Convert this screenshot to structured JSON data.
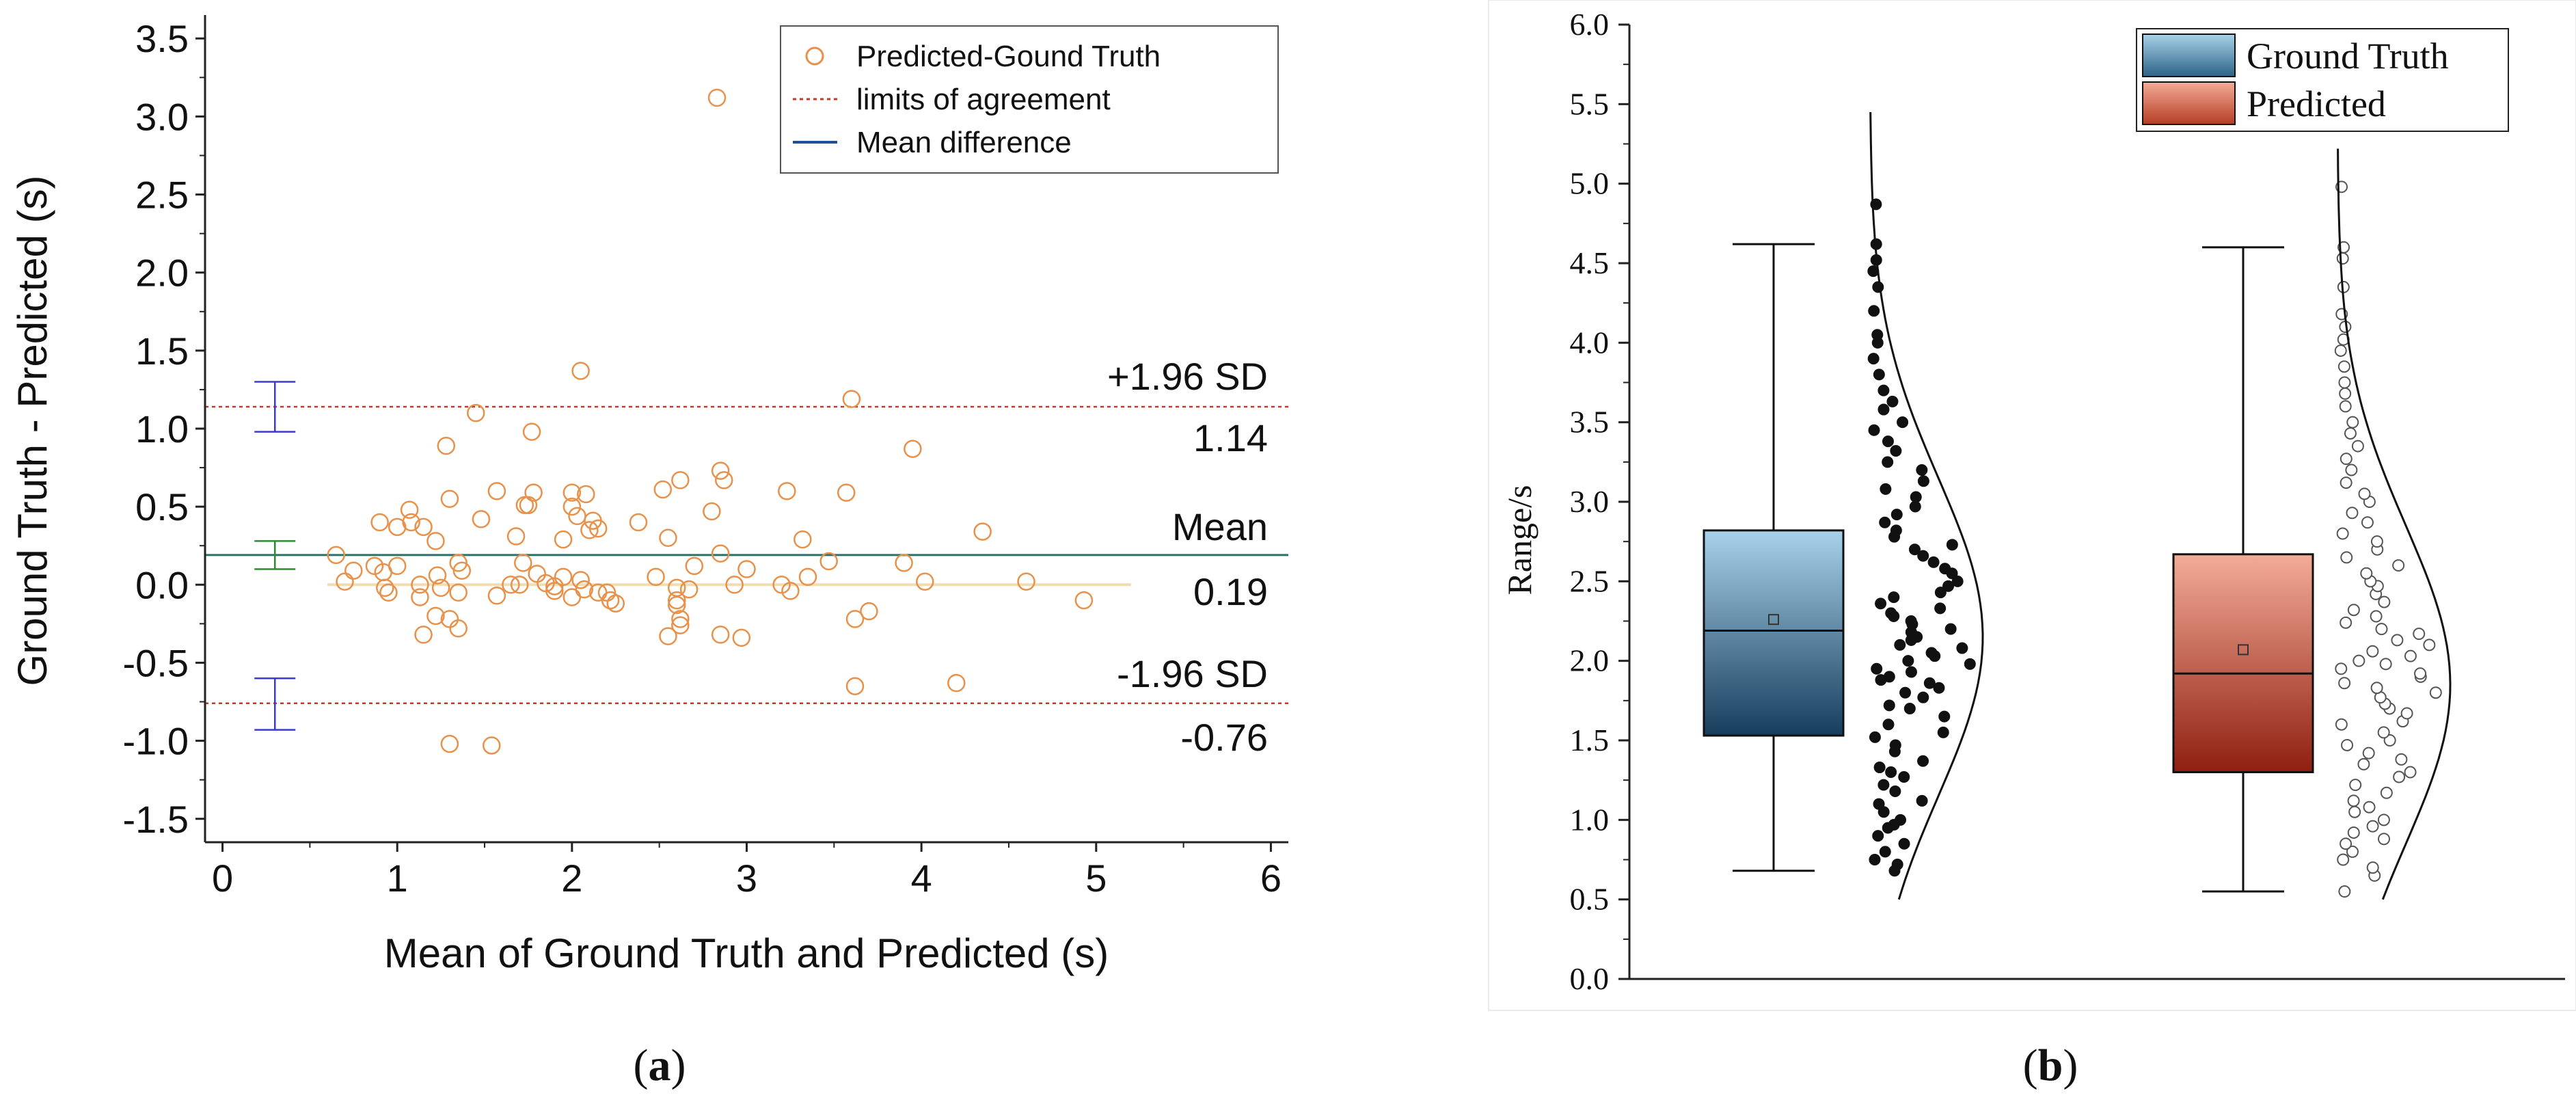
{
  "chart_data": [
    {
      "type": "scatter",
      "panel_label": "(a)",
      "panel_letter": "a",
      "xlabel": "Mean of Ground Truth and Predicted (s)",
      "ylabel": "Ground Truth - Predicted (s)",
      "xlim": [
        -0.1,
        6.1
      ],
      "ylim": [
        -1.65,
        3.65
      ],
      "xticks": [
        "0",
        "1",
        "2",
        "3",
        "4",
        "5",
        "6"
      ],
      "yticks": [
        "-1.5",
        "-1.0",
        "-0.5",
        "0.0",
        "0.5",
        "1.0",
        "1.5",
        "2.0",
        "2.5",
        "3.0",
        "3.5"
      ],
      "legend": [
        {
          "label": "Predicted-Gound Truth",
          "style": "circle"
        },
        {
          "label": "limits of agreement",
          "style": "dotted-red"
        },
        {
          "label": "Mean difference",
          "style": "solid-blue"
        }
      ],
      "mean_difference": 0.19,
      "upper_limit": 1.14,
      "lower_limit": -0.76,
      "annotations": {
        "upper_label": "+1.96 SD",
        "upper_value": "1.14",
        "mean_label": "Mean",
        "mean_value": "0.19",
        "lower_label": "-1.96 SD",
        "lower_value": "-0.76"
      },
      "confidence_bars": [
        {
          "x": 0.3,
          "low": 0.98,
          "high": 1.3,
          "color": "#3b3bd4"
        },
        {
          "x": 0.3,
          "low": 0.1,
          "high": 0.28,
          "color": "#2e8b2e"
        },
        {
          "x": 0.3,
          "low": -0.93,
          "high": -0.6,
          "color": "#3b3bd4"
        }
      ],
      "zero_line": {
        "y": 0.0,
        "x_range": [
          0.6,
          5.2
        ]
      },
      "points": [
        [
          2.83,
          3.12
        ],
        [
          2.05,
          1.37
        ],
        [
          1.45,
          1.1
        ],
        [
          3.6,
          1.19
        ],
        [
          1.77,
          0.98
        ],
        [
          1.28,
          0.89
        ],
        [
          3.95,
          0.87
        ],
        [
          2.85,
          0.73
        ],
        [
          2.87,
          0.67
        ],
        [
          1.3,
          0.55
        ],
        [
          1.73,
          0.51
        ],
        [
          1.78,
          0.59
        ],
        [
          1.75,
          0.51
        ],
        [
          2.0,
          0.59
        ],
        [
          2.08,
          0.58
        ],
        [
          2.0,
          0.5
        ],
        [
          2.03,
          0.44
        ],
        [
          2.52,
          0.61
        ],
        [
          2.62,
          0.67
        ],
        [
          3.23,
          0.6
        ],
        [
          3.57,
          0.59
        ],
        [
          1.07,
          0.48
        ],
        [
          1.08,
          0.4
        ],
        [
          1.0,
          0.37
        ],
        [
          0.9,
          0.4
        ],
        [
          1.15,
          0.37
        ],
        [
          1.48,
          0.42
        ],
        [
          1.57,
          0.6
        ],
        [
          1.68,
          0.31
        ],
        [
          2.12,
          0.41
        ],
        [
          2.15,
          0.36
        ],
        [
          2.1,
          0.35
        ],
        [
          1.95,
          0.29
        ],
        [
          2.38,
          0.4
        ],
        [
          2.8,
          0.47
        ],
        [
          3.32,
          0.29
        ],
        [
          4.35,
          0.34
        ],
        [
          0.65,
          0.19
        ],
        [
          0.7,
          0.02
        ],
        [
          0.75,
          0.09
        ],
        [
          0.87,
          0.12
        ],
        [
          0.92,
          0.08
        ],
        [
          1.0,
          0.12
        ],
        [
          1.22,
          0.28
        ],
        [
          1.35,
          0.14
        ],
        [
          1.37,
          0.09
        ],
        [
          1.23,
          0.06
        ],
        [
          1.13,
          0.0
        ],
        [
          1.25,
          -0.02
        ],
        [
          1.72,
          0.14
        ],
        [
          1.8,
          0.07
        ],
        [
          1.7,
          0.0
        ],
        [
          1.85,
          0.01
        ],
        [
          1.9,
          -0.01
        ],
        [
          1.95,
          0.05
        ],
        [
          2.05,
          0.03
        ],
        [
          2.07,
          -0.03
        ],
        [
          2.0,
          -0.08
        ],
        [
          2.2,
          -0.05
        ],
        [
          2.22,
          -0.1
        ],
        [
          2.48,
          0.05
        ],
        [
          2.55,
          0.3
        ],
        [
          2.6,
          -0.02
        ],
        [
          2.67,
          -0.03
        ],
        [
          2.7,
          0.12
        ],
        [
          2.85,
          0.2
        ],
        [
          3.0,
          0.1
        ],
        [
          3.2,
          0.0
        ],
        [
          3.35,
          0.05
        ],
        [
          3.47,
          0.15
        ],
        [
          3.9,
          0.14
        ],
        [
          4.02,
          0.02
        ],
        [
          4.6,
          0.02
        ],
        [
          4.93,
          -0.1
        ],
        [
          3.62,
          -0.22
        ],
        [
          3.7,
          -0.17
        ],
        [
          2.62,
          -0.22
        ],
        [
          2.55,
          -0.33
        ],
        [
          2.62,
          -0.26
        ],
        [
          2.6,
          -0.13
        ],
        [
          2.85,
          -0.32
        ],
        [
          2.97,
          -0.34
        ],
        [
          2.6,
          -0.1
        ],
        [
          2.25,
          -0.12
        ],
        [
          1.57,
          -0.07
        ],
        [
          1.22,
          -0.2
        ],
        [
          1.3,
          -0.22
        ],
        [
          1.35,
          -0.28
        ],
        [
          1.15,
          -0.32
        ],
        [
          1.13,
          -0.08
        ],
        [
          0.93,
          -0.02
        ],
        [
          0.95,
          -0.05
        ],
        [
          1.35,
          -0.05
        ],
        [
          1.65,
          0.0
        ],
        [
          1.9,
          -0.04
        ],
        [
          2.15,
          -0.05
        ],
        [
          3.62,
          -0.65
        ],
        [
          4.2,
          -0.63
        ],
        [
          1.3,
          -1.02
        ],
        [
          1.54,
          -1.03
        ],
        [
          3.25,
          -0.04
        ],
        [
          2.93,
          0.0
        ]
      ]
    },
    {
      "type": "box",
      "panel_label": "(b)",
      "panel_letter": "b",
      "ylabel": "Range/s",
      "ylim": [
        0.0,
        6.0
      ],
      "yticks": [
        "0.0",
        "0.5",
        "1.0",
        "1.5",
        "2.0",
        "2.5",
        "3.0",
        "3.5",
        "4.0",
        "4.5",
        "5.0",
        "5.5",
        "6.0"
      ],
      "legend": [
        {
          "label": "Ground Truth",
          "color": "#5a8fb3"
        },
        {
          "label": "Predicted",
          "color": "#e07a62"
        }
      ],
      "series": [
        {
          "name": "Ground Truth",
          "whisker_low": 0.68,
          "q1": 1.53,
          "median": 2.19,
          "q3": 2.82,
          "whisker_high": 4.62,
          "mean": 2.26,
          "color_top": "#a8d2ea",
          "color_bottom": "#163d5c",
          "points_style": "filled",
          "density_range": [
            0.5,
            5.45
          ],
          "density_peak": 2.15,
          "points": [
            0.68,
            0.72,
            0.75,
            0.8,
            0.85,
            0.9,
            0.95,
            0.97,
            1.0,
            1.05,
            1.1,
            1.12,
            1.18,
            1.22,
            1.27,
            1.3,
            1.33,
            1.37,
            1.43,
            1.47,
            1.52,
            1.55,
            1.6,
            1.65,
            1.7,
            1.72,
            1.77,
            1.8,
            1.83,
            1.86,
            1.88,
            1.9,
            1.93,
            1.95,
            1.98,
            2.0,
            2.03,
            2.05,
            2.08,
            2.1,
            2.13,
            2.15,
            2.18,
            2.2,
            2.23,
            2.25,
            2.28,
            2.3,
            2.33,
            2.36,
            2.4,
            2.43,
            2.47,
            2.5,
            2.55,
            2.58,
            2.62,
            2.66,
            2.7,
            2.73,
            2.78,
            2.82,
            2.87,
            2.92,
            2.97,
            3.03,
            3.08,
            3.13,
            3.2,
            3.25,
            3.32,
            3.38,
            3.45,
            3.5,
            3.58,
            3.63,
            3.7,
            3.8,
            3.9,
            4.0,
            4.05,
            4.2,
            4.35,
            4.45,
            4.52,
            4.62,
            4.87
          ]
        },
        {
          "name": "Predicted",
          "whisker_low": 0.55,
          "q1": 1.3,
          "median": 1.92,
          "q3": 2.67,
          "whisker_high": 4.6,
          "mean": 2.07,
          "color_top": "#f3ac98",
          "color_bottom": "#8f1f10",
          "points_style": "open",
          "density_range": [
            0.5,
            5.22
          ],
          "density_peak": 1.85,
          "points": [
            0.55,
            0.65,
            0.7,
            0.75,
            0.8,
            0.85,
            0.88,
            0.92,
            0.96,
            1.0,
            1.05,
            1.08,
            1.12,
            1.17,
            1.22,
            1.27,
            1.3,
            1.35,
            1.38,
            1.42,
            1.47,
            1.5,
            1.55,
            1.6,
            1.62,
            1.67,
            1.7,
            1.73,
            1.77,
            1.8,
            1.83,
            1.86,
            1.9,
            1.92,
            1.95,
            1.98,
            2.0,
            2.03,
            2.06,
            2.1,
            2.13,
            2.17,
            2.2,
            2.24,
            2.28,
            2.32,
            2.37,
            2.42,
            2.47,
            2.5,
            2.55,
            2.6,
            2.65,
            2.7,
            2.75,
            2.8,
            2.87,
            2.93,
            3.0,
            3.05,
            3.12,
            3.2,
            3.27,
            3.35,
            3.43,
            3.5,
            3.6,
            3.68,
            3.75,
            3.85,
            3.95,
            4.02,
            4.1,
            4.18,
            4.35,
            4.53,
            4.6,
            4.98
          ]
        }
      ]
    }
  ]
}
